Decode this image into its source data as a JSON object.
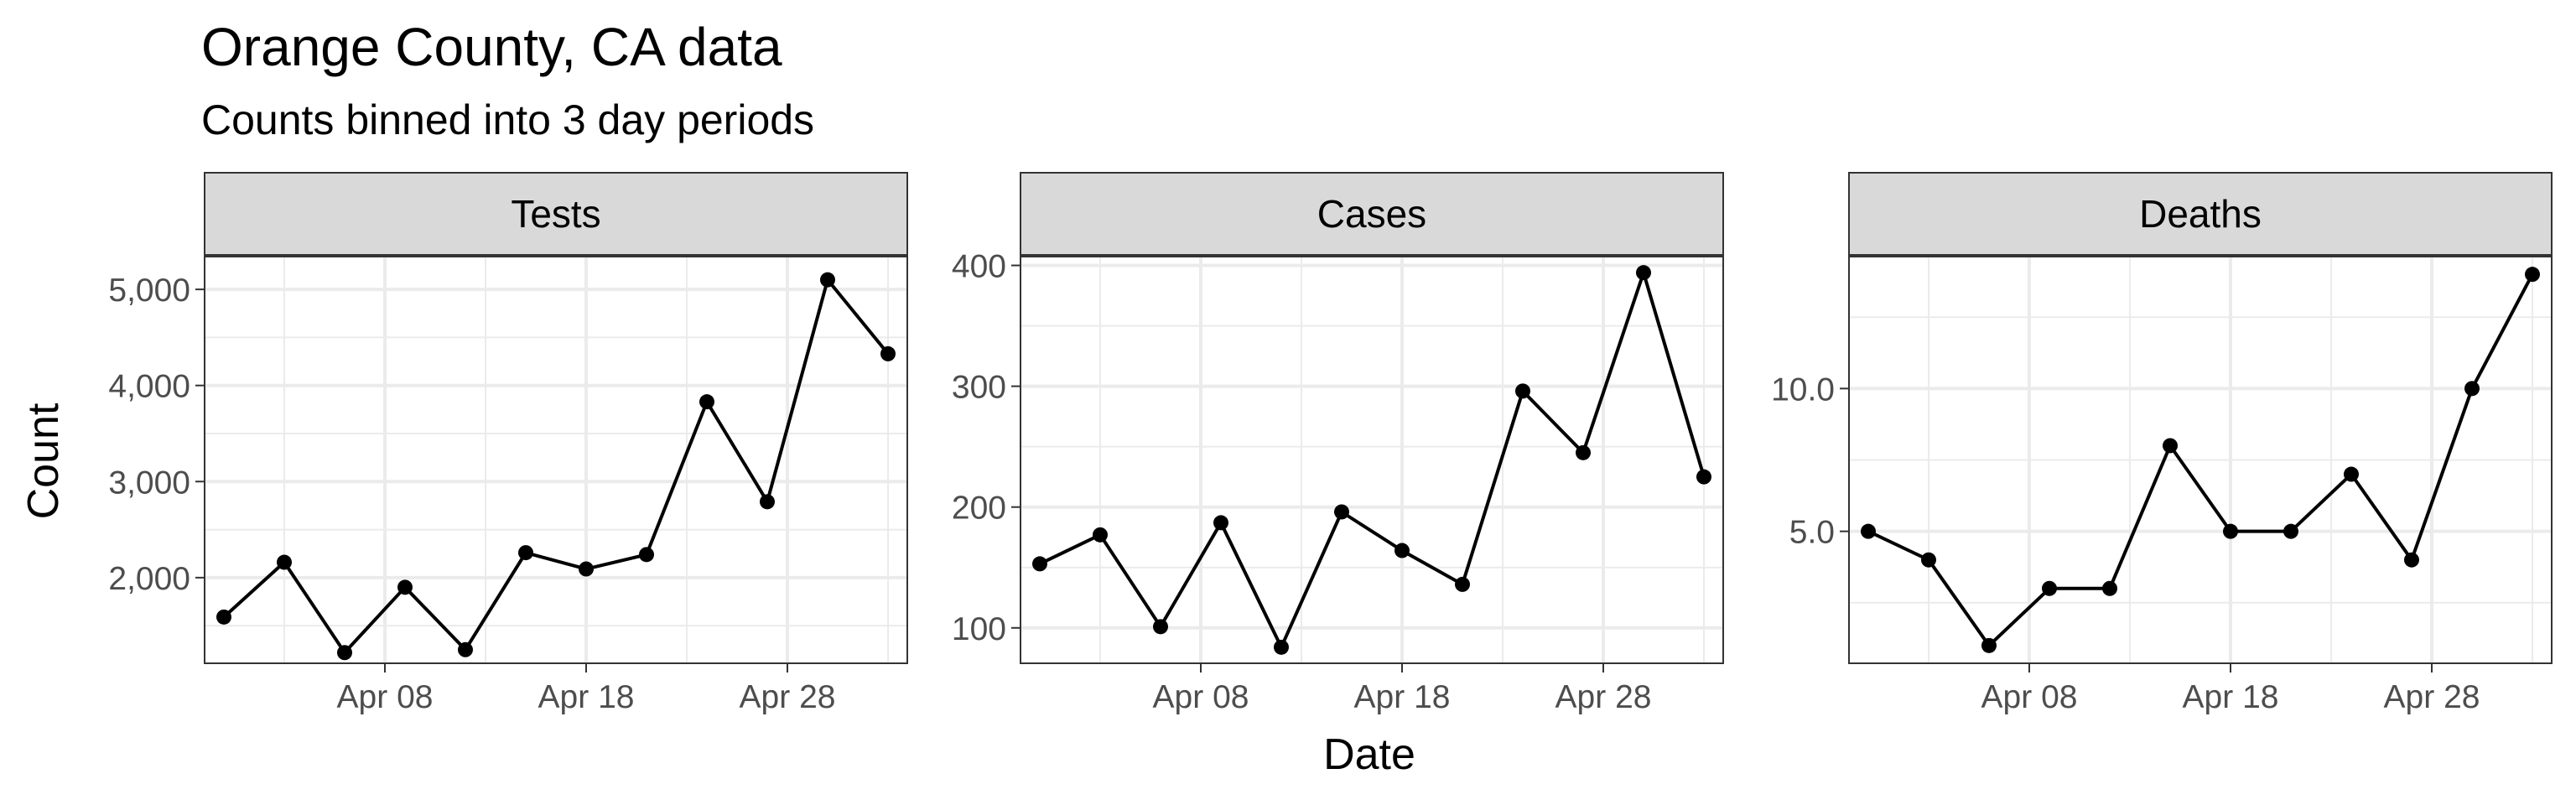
{
  "title": "Orange County, CA data",
  "subtitle": "Counts binned into 3 day periods",
  "xlabel": "Date",
  "ylabel": "Count",
  "chart_data": [
    {
      "type": "line",
      "facet": "Tests",
      "x": [
        "2020-03-31",
        "2020-04-03",
        "2020-04-06",
        "2020-04-09",
        "2020-04-12",
        "2020-04-15",
        "2020-04-18",
        "2020-04-21",
        "2020-04-24",
        "2020-04-27",
        "2020-04-30",
        "2020-05-03"
      ],
      "values": [
        1590,
        2160,
        1220,
        1900,
        1250,
        2260,
        2090,
        2240,
        3830,
        2790,
        5100,
        4330
      ],
      "xlim": [
        "2020-03-30",
        "2020-05-04"
      ],
      "ylim": [
        1100,
        5350
      ],
      "x_ticks": [
        {
          "date": "2020-04-08",
          "label": "Apr 08"
        },
        {
          "date": "2020-04-18",
          "label": "Apr 18"
        },
        {
          "date": "2020-04-28",
          "label": "Apr 28"
        }
      ],
      "y_ticks": [
        {
          "value": 2000,
          "label": "2,000"
        },
        {
          "value": 3000,
          "label": "3,000"
        },
        {
          "value": 4000,
          "label": "4,000"
        },
        {
          "value": 5000,
          "label": "5,000"
        }
      ],
      "grid": true
    },
    {
      "type": "line",
      "facet": "Cases",
      "x": [
        "2020-03-31",
        "2020-04-03",
        "2020-04-06",
        "2020-04-09",
        "2020-04-12",
        "2020-04-15",
        "2020-04-18",
        "2020-04-21",
        "2020-04-24",
        "2020-04-27",
        "2020-04-30",
        "2020-05-03"
      ],
      "values": [
        153,
        177,
        101,
        187,
        84,
        196,
        164,
        136,
        296,
        245,
        394,
        225
      ],
      "xlim": [
        "2020-03-30",
        "2020-05-04"
      ],
      "ylim": [
        70,
        408
      ],
      "x_ticks": [
        {
          "date": "2020-04-08",
          "label": "Apr 08"
        },
        {
          "date": "2020-04-18",
          "label": "Apr 18"
        },
        {
          "date": "2020-04-28",
          "label": "Apr 28"
        }
      ],
      "y_ticks": [
        {
          "value": 100,
          "label": "100"
        },
        {
          "value": 200,
          "label": "200"
        },
        {
          "value": 300,
          "label": "300"
        },
        {
          "value": 400,
          "label": "400"
        }
      ],
      "grid": true
    },
    {
      "type": "line",
      "facet": "Deaths",
      "x": [
        "2020-03-31",
        "2020-04-03",
        "2020-04-06",
        "2020-04-09",
        "2020-04-12",
        "2020-04-15",
        "2020-04-18",
        "2020-04-21",
        "2020-04-24",
        "2020-04-27",
        "2020-04-30",
        "2020-05-03"
      ],
      "values": [
        5,
        4,
        1,
        3,
        3,
        8,
        5,
        5,
        7,
        4,
        10,
        14
      ],
      "xlim": [
        "2020-03-30",
        "2020-05-04"
      ],
      "ylim": [
        0.35,
        14.65
      ],
      "x_ticks": [
        {
          "date": "2020-04-08",
          "label": "Apr 08"
        },
        {
          "date": "2020-04-18",
          "label": "Apr 18"
        },
        {
          "date": "2020-04-28",
          "label": "Apr 28"
        }
      ],
      "y_ticks": [
        {
          "value": 5,
          "label": "5.0"
        },
        {
          "value": 10,
          "label": "10.0"
        }
      ],
      "grid": true
    }
  ]
}
